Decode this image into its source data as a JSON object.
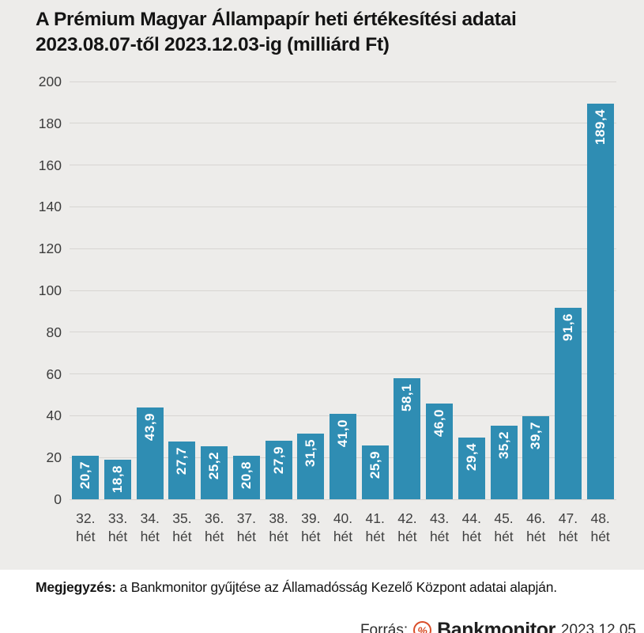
{
  "title": {
    "line1": "A Prémium Magyar Állampapír heti értékesítési adatai",
    "line2": "2023.08.07-től 2023.12.03-ig (milliárd Ft)"
  },
  "chart_data": {
    "type": "bar",
    "title": "A Prémium Magyar Állampapír heti értékesítési adatai 2023.08.07-től 2023.12.03-ig (milliárd Ft)",
    "categories": [
      "32. hét",
      "33. hét",
      "34. hét",
      "35. hét",
      "36. hét",
      "37. hét",
      "38. hét",
      "39. hét",
      "40. hét",
      "41. hét",
      "42. hét",
      "43. hét",
      "44. hét",
      "45. hét",
      "46. hét",
      "47. hét",
      "48. hét"
    ],
    "values": [
      20.7,
      18.8,
      43.9,
      27.7,
      25.2,
      20.8,
      27.9,
      31.5,
      41.0,
      25.9,
      58.1,
      46.0,
      29.4,
      35.2,
      39.7,
      91.6,
      189.4
    ],
    "value_labels": [
      "20,7",
      "18,8",
      "43,9",
      "27,7",
      "25,2",
      "20,8",
      "27,9",
      "31,5",
      "41,0",
      "25,9",
      "58,1",
      "46,0",
      "29,4",
      "35,2",
      "39,7",
      "91,6",
      "189,4"
    ],
    "xlabel": "",
    "ylabel": "",
    "unit": "milliárd Ft",
    "ylim": [
      0,
      200
    ],
    "ytick_step": 20,
    "grid": true,
    "legend_position": "none",
    "bar_color": "#2F8DB3",
    "value_label_color": "#FFFFFF"
  },
  "note": {
    "label": "Megjegyzés:",
    "text": " a Bankmonitor gyűjtése az Államadósság Kezelő Központ adatai alapján."
  },
  "footer": {
    "source_label": "Forrás:",
    "logo_icon": "percent-circle-icon",
    "logo_glyph": "%",
    "brand": "Bankmonitor",
    "date": "2023.12.05"
  },
  "colors": {
    "background": "#EDECEA",
    "panel": "#FFFFFF",
    "bar": "#2F8DB3",
    "gridline": "#D7D5D2",
    "axis_text": "#3C3C3C",
    "title_text": "#141414",
    "brand_orange": "#D94E29"
  }
}
